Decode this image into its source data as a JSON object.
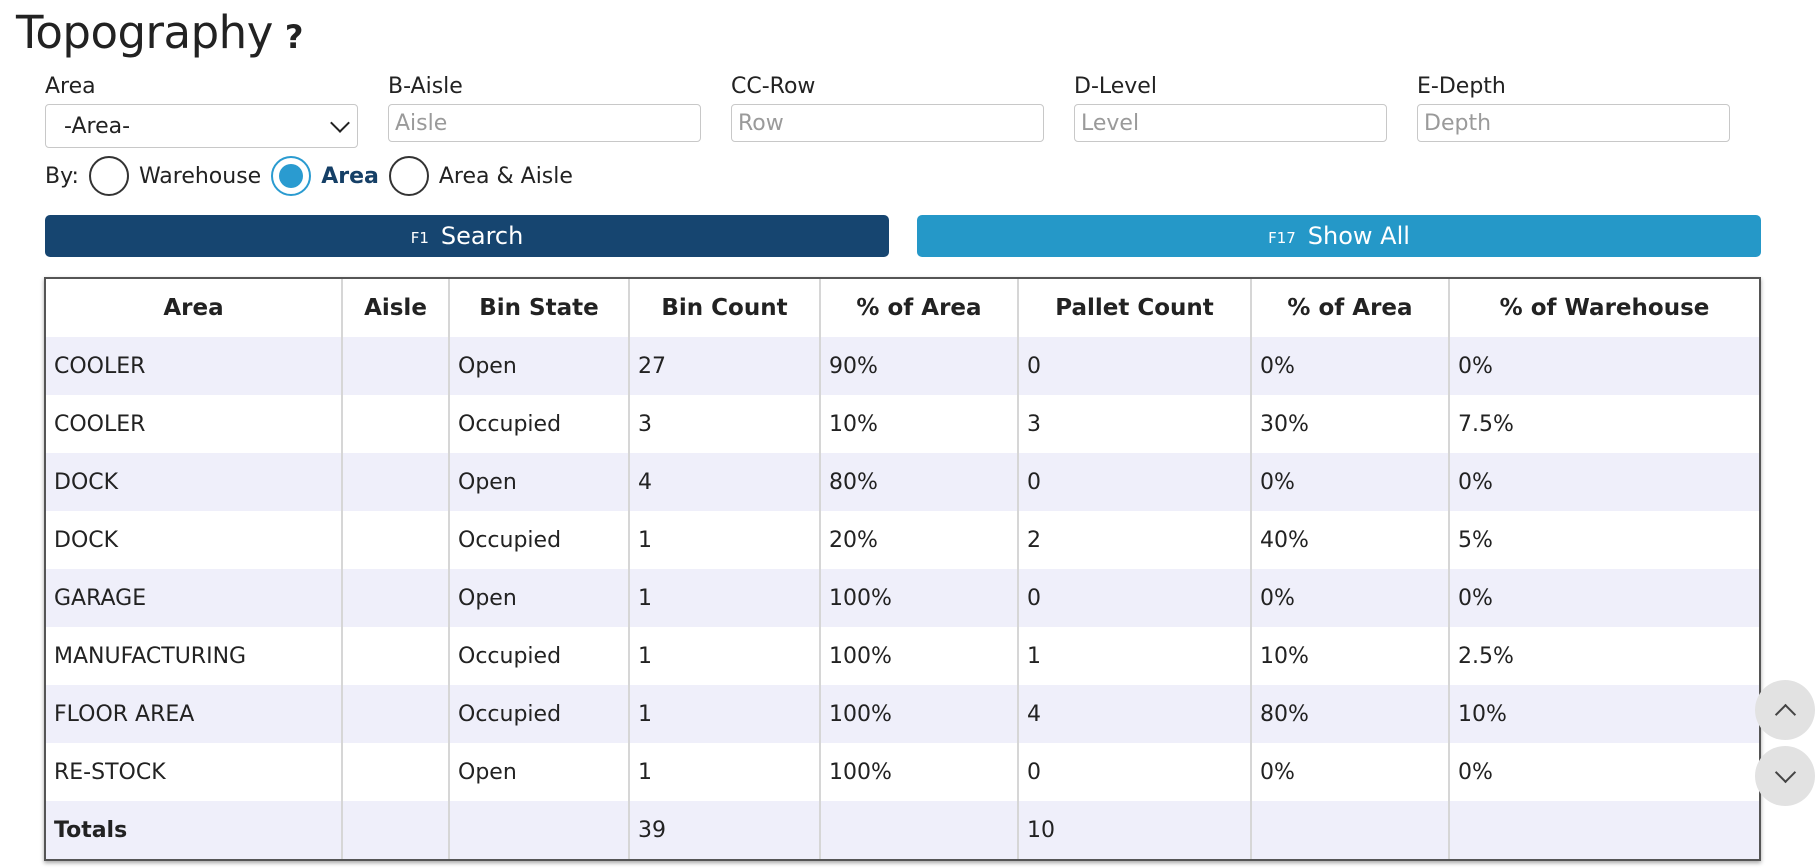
{
  "page": {
    "title": "Topography",
    "help_label": "?"
  },
  "filters": {
    "area": {
      "label": "Area",
      "value": "-Area-"
    },
    "aisle": {
      "label": "B-Aisle",
      "placeholder": "Aisle"
    },
    "row": {
      "label": "CC-Row",
      "placeholder": "Row"
    },
    "level": {
      "label": "D-Level",
      "placeholder": "Level"
    },
    "depth": {
      "label": "E-Depth",
      "placeholder": "Depth"
    }
  },
  "by": {
    "label": "By:",
    "options": [
      {
        "label": "Warehouse",
        "selected": false
      },
      {
        "label": "Area",
        "selected": true
      },
      {
        "label": "Area & Aisle",
        "selected": false
      }
    ]
  },
  "buttons": {
    "search": {
      "key": "F1",
      "label": "Search"
    },
    "show_all": {
      "key": "F17",
      "label": "Show All"
    }
  },
  "table": {
    "columns": [
      "Area",
      "Aisle",
      "Bin State",
      "Bin Count",
      "% of Area",
      "Pallet Count",
      "% of Area",
      "% of Warehouse"
    ],
    "rows": [
      [
        "COOLER",
        "",
        "Open",
        "27",
        "90%",
        "0",
        "0%",
        "0%"
      ],
      [
        "COOLER",
        "",
        "Occupied",
        "3",
        "10%",
        "3",
        "30%",
        "7.5%"
      ],
      [
        "DOCK",
        "",
        "Open",
        "4",
        "80%",
        "0",
        "0%",
        "0%"
      ],
      [
        "DOCK",
        "",
        "Occupied",
        "1",
        "20%",
        "2",
        "40%",
        "5%"
      ],
      [
        "GARAGE",
        "",
        "Open",
        "1",
        "100%",
        "0",
        "0%",
        "0%"
      ],
      [
        "MANUFACTURING",
        "",
        "Occupied",
        "1",
        "100%",
        "1",
        "10%",
        "2.5%"
      ],
      [
        "FLOOR AREA",
        "",
        "Occupied",
        "1",
        "100%",
        "4",
        "80%",
        "10%"
      ],
      [
        "RE-STOCK",
        "",
        "Open",
        "1",
        "100%",
        "0",
        "0%",
        "0%"
      ]
    ],
    "totals": [
      "Totals",
      "",
      "",
      "39",
      "",
      "10",
      "",
      ""
    ]
  },
  "icons": {
    "scroll_up": "chevron-up-icon",
    "scroll_down": "chevron-down-icon",
    "select_arrow": "chevron-down-icon"
  },
  "colors": {
    "search_button": "#164570",
    "show_all_button": "#2598c8",
    "radio_selected": "#2a9bd0",
    "row_stripe": "#efeffa"
  }
}
